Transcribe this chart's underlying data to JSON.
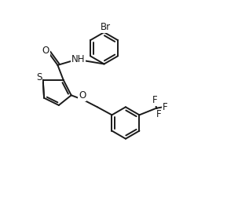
{
  "bg_color": "#ffffff",
  "line_color": "#1a1a1a",
  "line_width": 1.4,
  "font_size": 8.5,
  "xlim": [
    0,
    10
  ],
  "ylim": [
    0,
    9
  ],
  "figsize": [
    3.17,
    2.61
  ],
  "dpi": 100
}
